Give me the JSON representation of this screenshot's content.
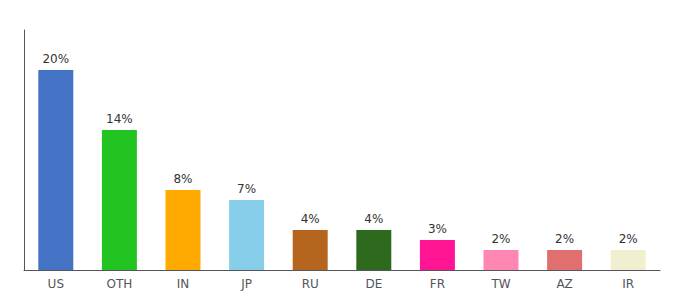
{
  "chart_data": {
    "type": "bar",
    "categories": [
      "US",
      "OTH",
      "IN",
      "JP",
      "RU",
      "DE",
      "FR",
      "TW",
      "AZ",
      "IR"
    ],
    "values": [
      20,
      14,
      8,
      7,
      4,
      4,
      3,
      2,
      2,
      2
    ],
    "value_labels": [
      "20%",
      "14%",
      "8%",
      "7%",
      "4%",
      "4%",
      "3%",
      "2%",
      "2%",
      "2%"
    ],
    "colors": [
      "#4472c4",
      "#21c421",
      "#ffaa00",
      "#87ceeb",
      "#b5651d",
      "#2d6a1e",
      "#ff1493",
      "#ff85b3",
      "#e07070",
      "#f0f0d0"
    ],
    "ylim": [
      0,
      24
    ],
    "grid": false,
    "data_labels": true,
    "tick_labels": "x"
  }
}
